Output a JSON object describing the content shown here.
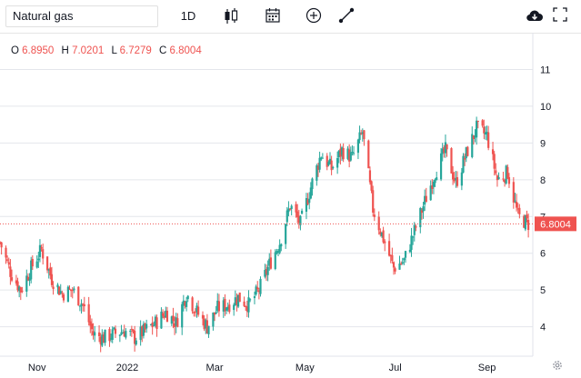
{
  "toolbar": {
    "symbol": "Natural gas",
    "interval": "1D",
    "icons": [
      "candlestick-icon",
      "calendar-icon",
      "add-circle-icon",
      "draw-line-icon",
      "cloud-download-icon"
    ]
  },
  "legend": {
    "o_label": "O",
    "o_value": "6.8950",
    "h_label": "H",
    "h_value": "7.0201",
    "l_label": "L",
    "l_value": "6.7279",
    "c_label": "C",
    "c_value": "6.8004"
  },
  "colors": {
    "up": "#26a69a",
    "down": "#ef5350",
    "last_price": "#ef5350"
  },
  "chart_data": {
    "type": "candlestick",
    "y_ticks": [
      "11",
      "10",
      "9",
      "8",
      "7",
      "6",
      "5",
      "4"
    ],
    "y_tick_values": [
      11,
      10,
      9,
      8,
      7,
      6,
      5,
      4
    ],
    "ylim": [
      3.2,
      12
    ],
    "x_ticks": [
      "Nov",
      "2022",
      "Mar",
      "May",
      "Jul",
      "Sep"
    ],
    "x_tick_values": [
      "2021-11-01",
      "2022-01-01",
      "2022-03-01",
      "2022-05-01",
      "2022-07-01",
      "2022-09-01"
    ],
    "xlim": [
      "2021-10-07",
      "2022-10-02"
    ],
    "last_price": 6.8004,
    "last_price_label": "6.8004",
    "grid": "horizontal",
    "series_close": [
      [
        "2021-10-07",
        6.3
      ],
      [
        "2021-10-14",
        5.5
      ],
      [
        "2021-10-21",
        5.0
      ],
      [
        "2021-10-28",
        5.6
      ],
      [
        "2021-11-04",
        6.1
      ],
      [
        "2021-11-11",
        5.3
      ],
      [
        "2021-11-18",
        4.9
      ],
      [
        "2021-11-25",
        5.0
      ],
      [
        "2021-12-02",
        4.6
      ],
      [
        "2021-12-09",
        3.8
      ],
      [
        "2021-12-16",
        3.7
      ],
      [
        "2021-12-23",
        3.8
      ],
      [
        "2021-12-30",
        3.9
      ],
      [
        "2022-01-06",
        3.7
      ],
      [
        "2022-01-13",
        3.9
      ],
      [
        "2022-01-20",
        4.1
      ],
      [
        "2022-01-27",
        4.4
      ],
      [
        "2022-02-03",
        4.1
      ],
      [
        "2022-02-10",
        4.9
      ],
      [
        "2022-02-17",
        4.4
      ],
      [
        "2022-02-24",
        4.0
      ],
      [
        "2022-03-03",
        4.5
      ],
      [
        "2022-03-10",
        4.6
      ],
      [
        "2022-03-17",
        4.8
      ],
      [
        "2022-03-24",
        4.6
      ],
      [
        "2022-03-31",
        5.0
      ],
      [
        "2022-04-07",
        5.7
      ],
      [
        "2022-04-14",
        6.3
      ],
      [
        "2022-04-21",
        7.3
      ],
      [
        "2022-04-28",
        6.8
      ],
      [
        "2022-05-05",
        7.8
      ],
      [
        "2022-05-12",
        8.7
      ],
      [
        "2022-05-19",
        8.3
      ],
      [
        "2022-05-26",
        8.8
      ],
      [
        "2022-06-02",
        8.6
      ],
      [
        "2022-06-09",
        9.3
      ],
      [
        "2022-06-16",
        7.2
      ],
      [
        "2022-06-23",
        6.4
      ],
      [
        "2022-06-30",
        5.6
      ],
      [
        "2022-07-07",
        5.8
      ],
      [
        "2022-07-14",
        6.6
      ],
      [
        "2022-07-21",
        7.4
      ],
      [
        "2022-07-28",
        8.2
      ],
      [
        "2022-08-04",
        8.8
      ],
      [
        "2022-08-11",
        7.9
      ],
      [
        "2022-08-18",
        8.7
      ],
      [
        "2022-08-25",
        9.4
      ],
      [
        "2022-09-01",
        9.2
      ],
      [
        "2022-09-08",
        8.0
      ],
      [
        "2022-09-15",
        8.2
      ],
      [
        "2022-09-22",
        7.0
      ],
      [
        "2022-09-29",
        6.8
      ]
    ]
  }
}
